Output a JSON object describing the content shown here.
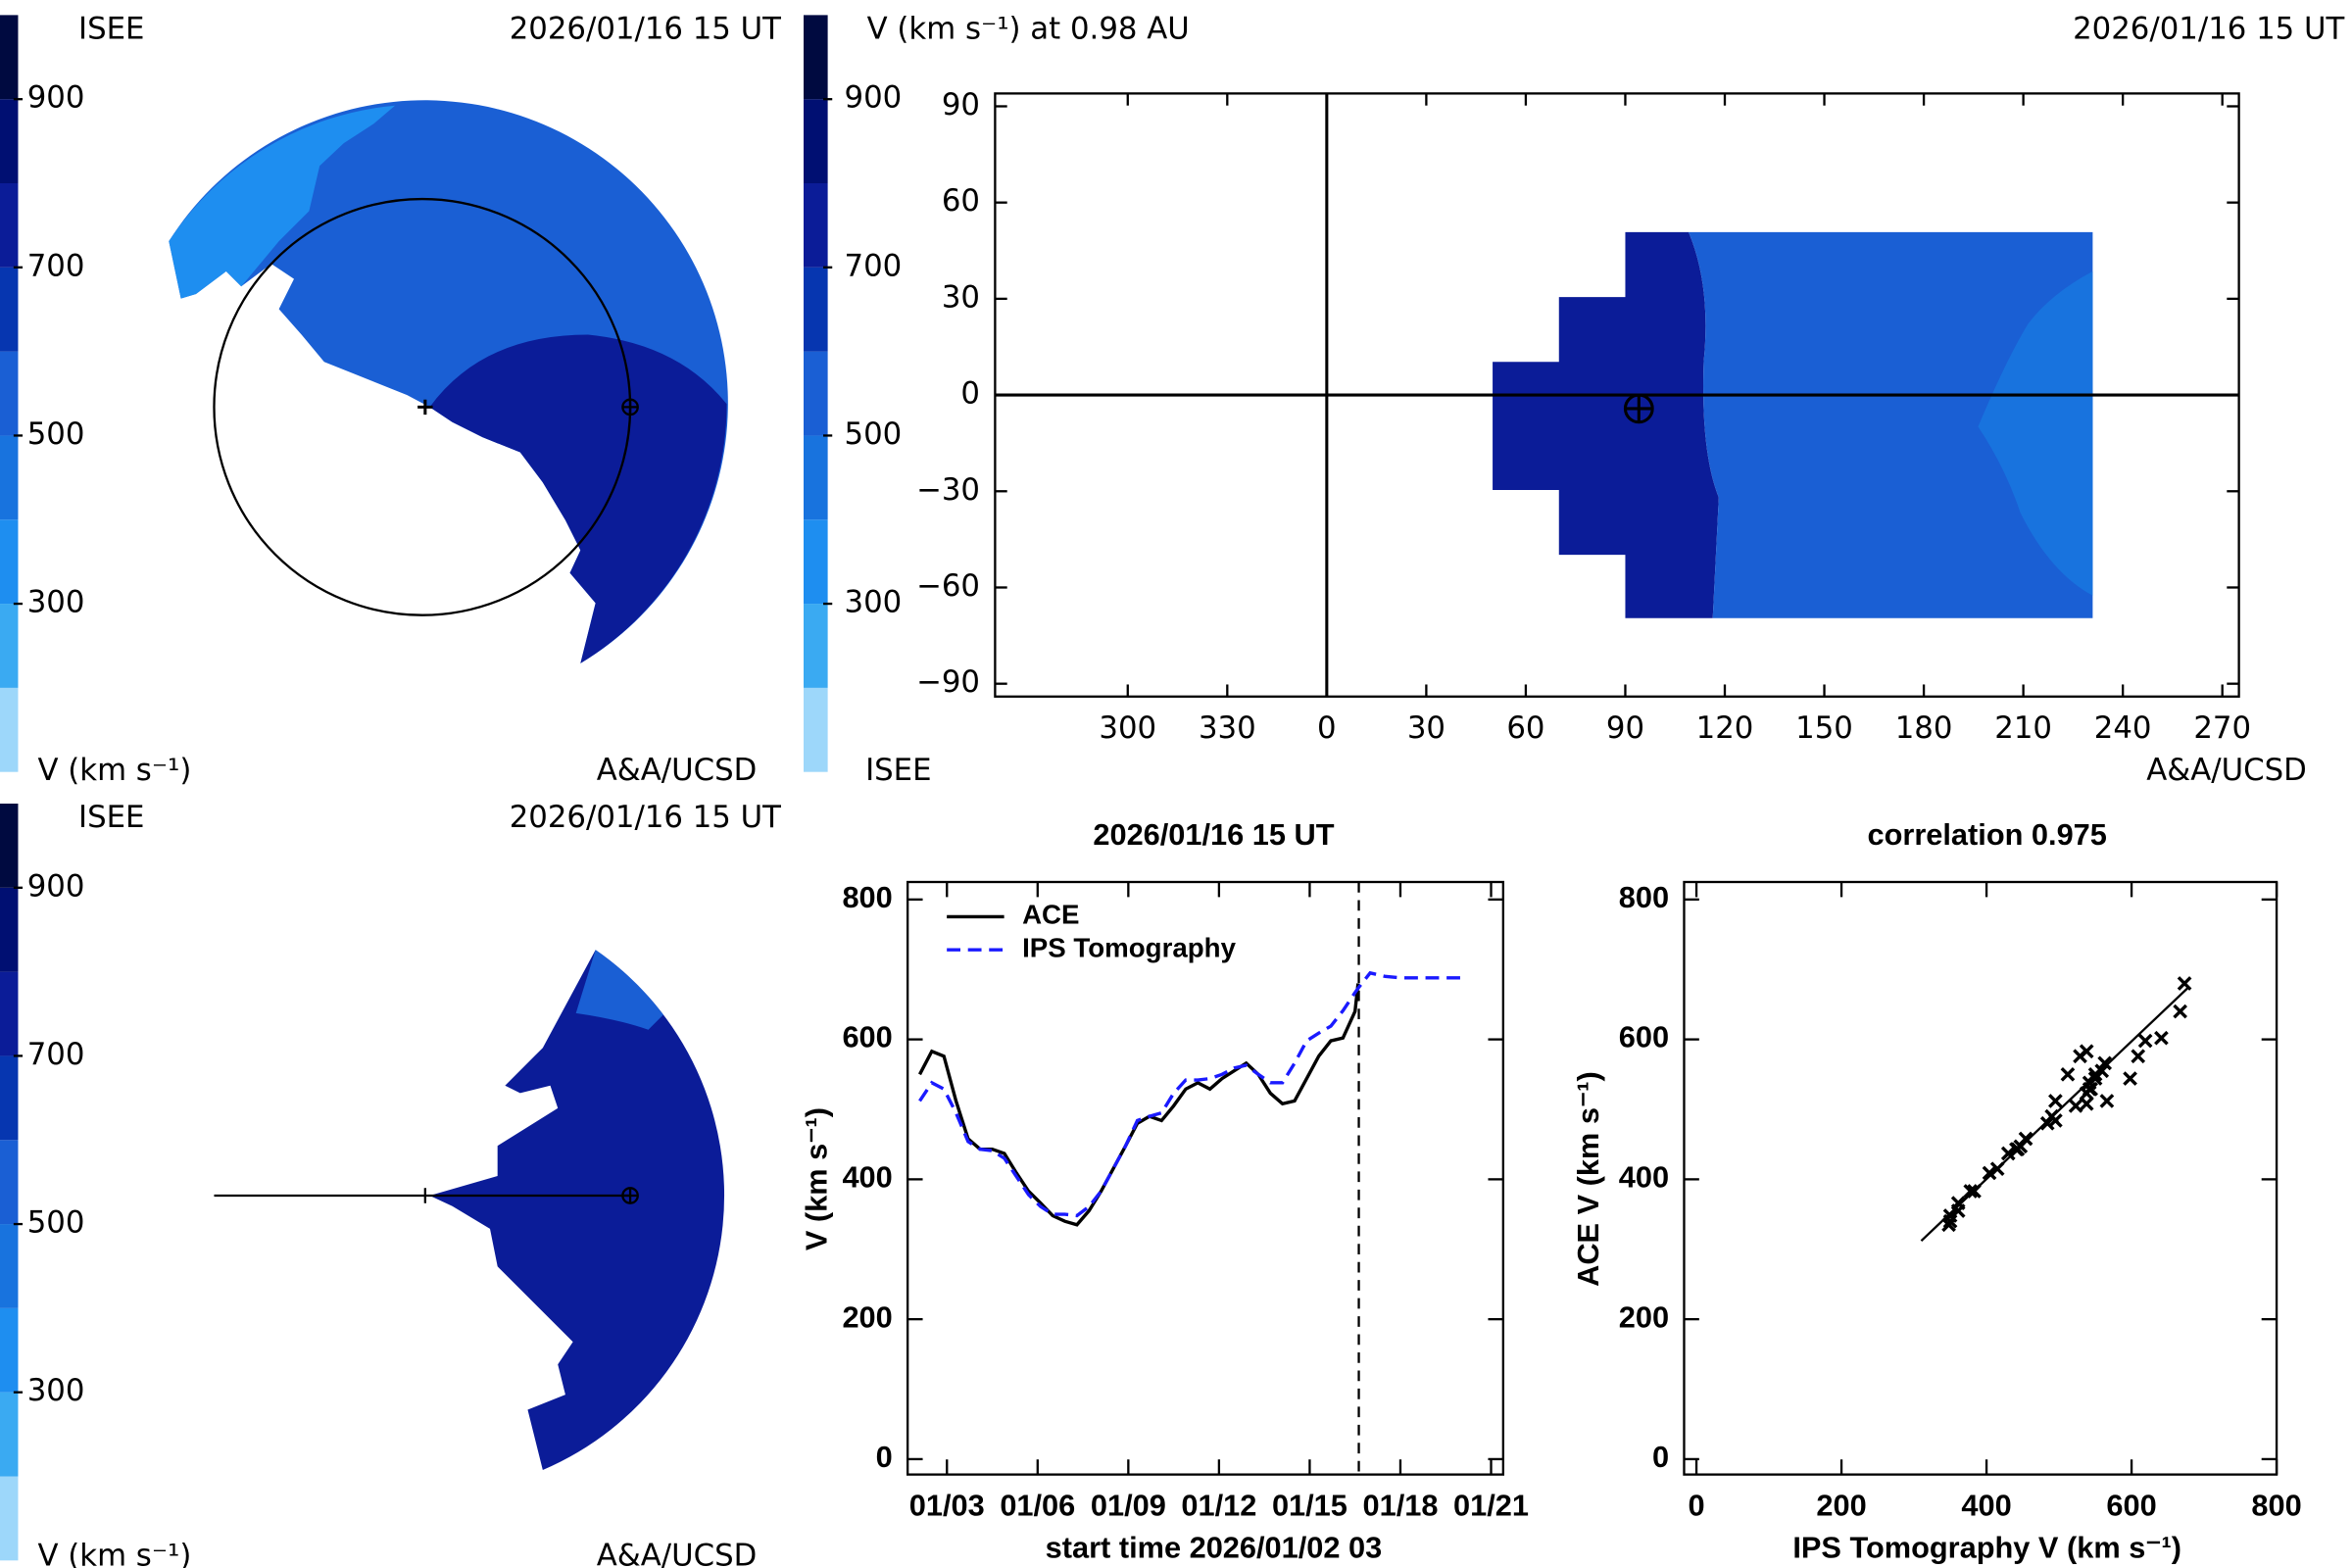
{
  "chart_data": [
    {
      "type": "polar-contour",
      "source": "ISEE",
      "date": "2026/01/16 15 UT",
      "zlabel": "V (km s⁻¹)",
      "credit": "A&A/UCSD",
      "zlim": [
        100,
        1000
      ],
      "zticks": [
        300,
        500,
        700,
        900
      ],
      "levels": [
        100,
        200,
        300,
        400,
        500,
        600,
        700,
        800,
        900,
        1000
      ],
      "colors": [
        "#9dd7fa",
        "#3aaaf2",
        "#1e8ef0",
        "#1873de",
        "#1a5fd4",
        "#0636b0",
        "#0b1c98",
        "#000f72",
        "#000a40"
      ]
    },
    {
      "type": "map-contour",
      "title": "V (km s⁻¹) at 0.98 AU",
      "date": "2026/01/16 15 UT",
      "source": "ISEE",
      "credit": "A&A/UCSD",
      "xlim": [
        -100,
        275
      ],
      "xticks": [
        {
          "value": -60,
          "label": "300"
        },
        {
          "value": -30,
          "label": "330"
        },
        0,
        30,
        60,
        90,
        120,
        150,
        180,
        210,
        240,
        270
      ],
      "ylim": [
        -94,
        94
      ],
      "yticks": [
        {
          "value": -90,
          "label": "−90"
        },
        {
          "value": -60,
          "label": "−60"
        },
        {
          "value": -30,
          "label": "−30"
        },
        0,
        30,
        60,
        90
      ],
      "zlim": [
        100,
        1000
      ],
      "zticks": [
        300,
        500,
        700,
        900
      ],
      "levels": [
        100,
        200,
        300,
        400,
        500,
        600,
        700,
        800,
        900,
        1000
      ],
      "colors": [
        "#9dd7fa",
        "#3aaaf2",
        "#1e8ef0",
        "#1873de",
        "#1a5fd4",
        "#0636b0",
        "#0b1c98",
        "#000f72",
        "#000a40"
      ]
    },
    {
      "type": "polar-contour",
      "source": "ISEE",
      "date": "2026/01/16 15 UT",
      "zlabel": "V (km s⁻¹)",
      "credit": "A&A/UCSD",
      "zlim": [
        100,
        1000
      ],
      "zticks": [
        300,
        500,
        700,
        900
      ],
      "levels": [
        100,
        200,
        300,
        400,
        500,
        600,
        700,
        800,
        900,
        1000
      ],
      "colors": [
        "#9dd7fa",
        "#3aaaf2",
        "#1e8ef0",
        "#1873de",
        "#1a5fd4",
        "#0636b0",
        "#0b1c98",
        "#000f72",
        "#000a40"
      ]
    },
    {
      "type": "line",
      "title": "2026/01/16 15 UT",
      "xlabel": "start time 2026/01/02 03",
      "ylabel": "V (km s⁻¹)",
      "x": [
        2.1,
        2.5,
        2.9,
        3.3,
        3.7,
        4.1,
        4.5,
        4.9,
        5.3,
        5.7,
        6.1,
        6.5,
        6.9,
        7.3,
        7.7,
        8.1,
        8.5,
        8.9,
        9.3,
        9.7,
        10.1,
        10.5,
        10.9,
        11.3,
        11.7,
        12.1,
        12.5,
        12.9,
        13.3,
        13.7,
        14.1,
        14.5,
        14.9,
        15.3,
        15.7,
        16.1,
        16.5,
        16.6,
        17.0,
        17.5,
        18.0,
        18.5,
        19.0,
        19.5,
        20.0,
        20.2
      ],
      "xlim": [
        1.7,
        21.4
      ],
      "xticks": [
        {
          "value": 3,
          "label": "01/03"
        },
        {
          "value": 6,
          "label": "01/06"
        },
        {
          "value": 9,
          "label": "01/09"
        },
        {
          "value": 12,
          "label": "01/12"
        },
        {
          "value": 15,
          "label": "01/15"
        },
        {
          "value": 18,
          "label": "01/18"
        },
        {
          "value": 21,
          "label": "01/21"
        }
      ],
      "ylim": [
        -22,
        825
      ],
      "yticks": [
        0,
        200,
        400,
        600,
        800
      ],
      "current_time": 16.625,
      "legend": "top-left",
      "series": [
        {
          "name": "ACE",
          "color": "#000000",
          "style": "solid",
          "values": [
            550,
            583,
            576,
            512,
            458,
            443,
            443,
            437,
            409,
            383,
            366,
            348,
            340,
            335,
            355,
            383,
            415,
            447,
            480,
            490,
            484,
            505,
            529,
            538,
            529,
            544,
            555,
            566,
            550,
            523,
            508,
            512,
            544,
            576,
            598,
            602,
            640,
            680,
            null,
            null,
            null,
            null,
            null,
            null,
            null,
            null
          ]
        },
        {
          "name": "IPS Tomography",
          "color": "#1a1aff",
          "style": "dashed",
          "values": [
            512,
            538,
            529,
            495,
            454,
            443,
            441,
            430,
            404,
            378,
            361,
            350,
            350,
            348,
            361,
            383,
            415,
            447,
            484,
            490,
            495,
            523,
            542,
            542,
            544,
            550,
            559,
            563,
            550,
            538,
            538,
            566,
            598,
            609,
            619,
            641,
            667,
            673,
            695,
            690,
            688,
            688,
            688,
            688,
            688,
            688
          ]
        }
      ]
    },
    {
      "type": "scatter",
      "title": "correlation 0.975",
      "xlabel": "IPS Tomography V (km s⁻¹)",
      "ylabel": "ACE V (km s⁻¹)",
      "xlim": [
        -17,
        800
      ],
      "xticks": [
        0,
        200,
        400,
        600,
        800
      ],
      "ylim": [
        -22,
        825
      ],
      "yticks": [
        0,
        200,
        400,
        600,
        800
      ],
      "fit": {
        "x": [
          310,
          677
        ],
        "y": [
          312,
          673
        ]
      }
    }
  ]
}
